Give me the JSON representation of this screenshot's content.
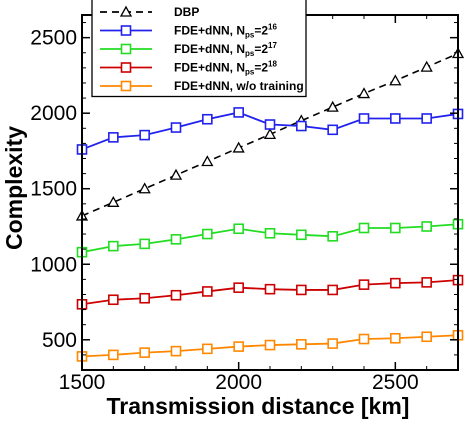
{
  "chart_data": {
    "type": "line",
    "xlabel": "Transmission distance [km]",
    "ylabel": "Complexity",
    "xlim": [
      1500,
      2700
    ],
    "ylim": [
      300,
      2650
    ],
    "xticks": [
      1500,
      2000,
      2500
    ],
    "yticks": [
      500,
      1000,
      1500,
      2000,
      2500
    ],
    "grid": false,
    "legend_position": "top-left",
    "x": [
      1500,
      1600,
      1700,
      1800,
      1900,
      2000,
      2100,
      2200,
      2300,
      2400,
      2500,
      2600,
      2700
    ],
    "series": [
      {
        "name": "DBP",
        "color": "#000000",
        "marker": "triangle",
        "dash": true,
        "values": [
          1320,
          1410,
          1500,
          1590,
          1680,
          1770,
          1860,
          1950,
          2040,
          2130,
          2215,
          2305,
          2395
        ]
      },
      {
        "name": "FDE+dNN, N_ps=2^16",
        "name_parts": {
          "main": "FDE+dNN, N",
          "sub": "ps",
          "mid": "=2",
          "sup": "16"
        },
        "color": "#2222ee",
        "marker": "square",
        "dash": false,
        "values": [
          1760,
          1840,
          1855,
          1905,
          1960,
          2005,
          1925,
          1915,
          1890,
          1965,
          1965,
          1965,
          1995
        ]
      },
      {
        "name": "FDE+dNN, N_ps=2^17",
        "name_parts": {
          "main": "FDE+dNN, N",
          "sub": "ps",
          "mid": "=2",
          "sup": "17"
        },
        "color": "#22dd22",
        "marker": "square",
        "dash": false,
        "values": [
          1080,
          1120,
          1135,
          1165,
          1200,
          1235,
          1205,
          1195,
          1185,
          1240,
          1240,
          1250,
          1265
        ]
      },
      {
        "name": "FDE+dNN, N_ps=2^18",
        "name_parts": {
          "main": "FDE+dNN, N",
          "sub": "ps",
          "mid": "=2",
          "sup": "18"
        },
        "color": "#cc0000",
        "marker": "square",
        "dash": false,
        "values": [
          735,
          765,
          775,
          795,
          820,
          845,
          835,
          830,
          830,
          865,
          875,
          880,
          895
        ]
      },
      {
        "name": "FDE+dNN, w/o training",
        "color": "#ff8800",
        "marker": "square",
        "dash": false,
        "values": [
          390,
          400,
          415,
          425,
          440,
          455,
          465,
          470,
          475,
          505,
          510,
          520,
          530
        ]
      }
    ]
  }
}
